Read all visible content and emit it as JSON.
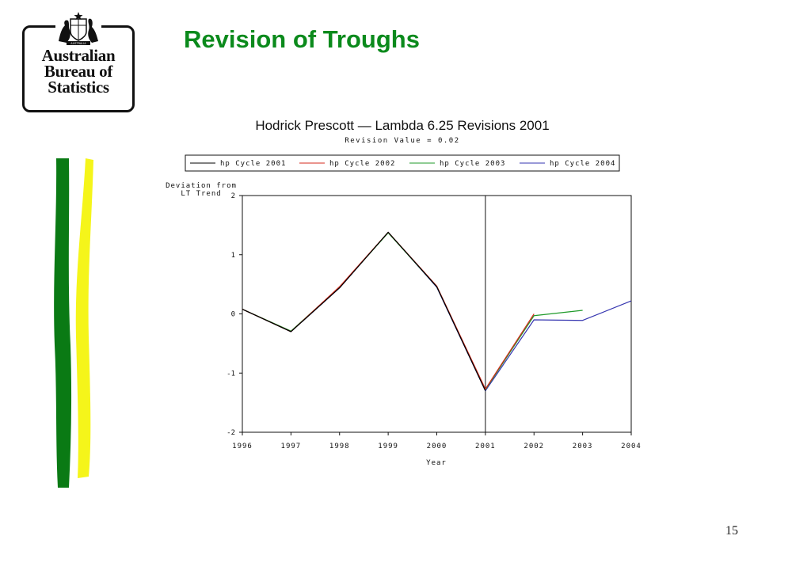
{
  "slide": {
    "title": "Revision of Troughs",
    "page_number": "15",
    "logo": {
      "lines": [
        "Australian",
        "Bureau of",
        "Statistics"
      ],
      "crest_label": "AUSTRALIA"
    },
    "colors": {
      "title": "#0b8a1c",
      "stripe_green": "#0a7a14",
      "stripe_yellow": "#f5f51a"
    }
  },
  "chart_data": {
    "type": "line",
    "title": "Hodrick Prescott — Lambda 6.25 Revisions 2001",
    "subtitle": "Revision Value = 0.02",
    "xlabel": "Year",
    "ylabel": "Deviation from LT Trend",
    "ylabel_lines": [
      "Deviation from",
      "LT Trend"
    ],
    "xlim": [
      1996,
      2004
    ],
    "ylim": [
      -2,
      2
    ],
    "x_ticks": [
      "1996",
      "1997",
      "1998",
      "1999",
      "2000",
      "2001",
      "2002",
      "2003",
      "2004"
    ],
    "y_ticks": [
      "2",
      "1",
      "0",
      "-1",
      "-2"
    ],
    "reference_line_x": 2001,
    "grid": false,
    "legend_position": "top",
    "series": [
      {
        "name": "hp Cycle 2001",
        "color": "#000000",
        "x": [
          1996,
          1997,
          1998,
          1999,
          2000,
          2001
        ],
        "y": [
          0.08,
          -0.3,
          0.44,
          1.38,
          0.46,
          -1.3
        ]
      },
      {
        "name": "hp Cycle 2002",
        "color": "#d42a1c",
        "x": [
          1996,
          1997,
          1998,
          1999,
          2000,
          2001,
          2002
        ],
        "y": [
          0.08,
          -0.3,
          0.46,
          1.38,
          0.47,
          -1.27,
          0.0
        ]
      },
      {
        "name": "hp Cycle 2003",
        "color": "#1f9a2a",
        "x": [
          1996,
          1997,
          1998,
          1999,
          2000,
          2001,
          2002,
          2003
        ],
        "y": [
          0.08,
          -0.29,
          0.45,
          1.37,
          0.46,
          -1.28,
          -0.03,
          0.06
        ]
      },
      {
        "name": "hp Cycle 2004",
        "color": "#3636b0",
        "x": [
          1996,
          1997,
          1998,
          1999,
          2000,
          2001,
          2002,
          2003,
          2004
        ],
        "y": [
          0.08,
          -0.3,
          0.44,
          1.38,
          0.45,
          -1.3,
          -0.1,
          -0.11,
          0.22
        ]
      }
    ]
  }
}
